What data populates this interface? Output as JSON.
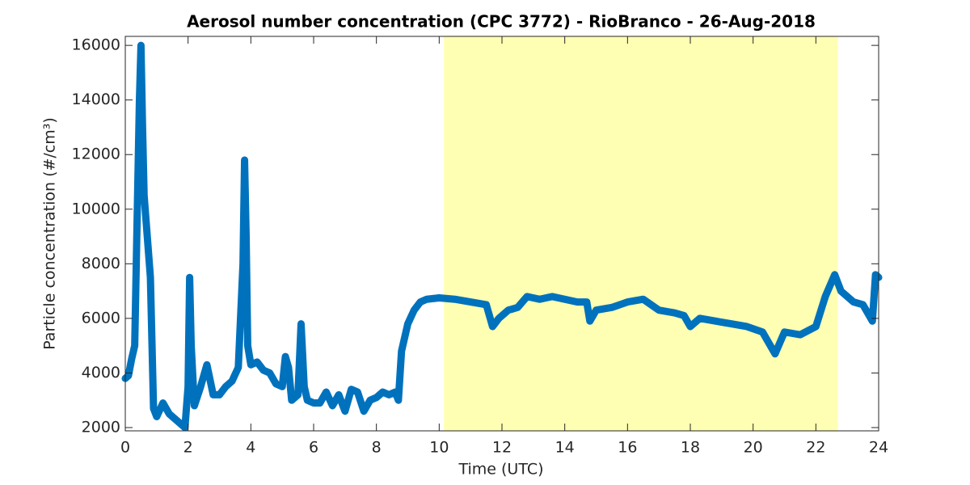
{
  "chart_data": {
    "type": "line",
    "title": "Aerosol number concentration (CPC 3772) - RioBranco - 26-Aug-2018",
    "x_label": "Time (UTC)",
    "y_label": "Particle concentration (#/cm³)",
    "xlim": [
      0,
      24
    ],
    "xticks": [
      0,
      2,
      4,
      6,
      8,
      10,
      12,
      14,
      16,
      18,
      20,
      22,
      24
    ],
    "ylim": [
      1880,
      16330
    ],
    "yticks": [
      2000,
      4000,
      6000,
      8000,
      10000,
      12000,
      14000,
      16000
    ],
    "shade": {
      "x": [
        10.15,
        22.7
      ],
      "color": "#ffffb3"
    },
    "series": [
      {
        "name": "CPC 3772",
        "color": "#0072bd",
        "x": [
          0,
          0.1,
          0.2,
          0.3,
          0.35,
          0.45,
          0.5,
          0.55,
          0.6,
          0.7,
          0.8,
          0.9,
          1.0,
          1.2,
          1.4,
          1.6,
          1.8,
          1.9,
          2.0,
          2.05,
          2.1,
          2.2,
          2.4,
          2.6,
          2.8,
          3.0,
          3.2,
          3.4,
          3.6,
          3.75,
          3.8,
          3.85,
          3.9,
          4.0,
          4.2,
          4.4,
          4.6,
          4.8,
          5.0,
          5.1,
          5.2,
          5.3,
          5.5,
          5.6,
          5.7,
          5.8,
          6.0,
          6.2,
          6.4,
          6.6,
          6.8,
          7.0,
          7.2,
          7.4,
          7.6,
          7.8,
          8.0,
          8.2,
          8.4,
          8.6,
          8.7,
          8.8,
          9.0,
          9.2,
          9.4,
          9.6,
          10,
          10.5,
          11,
          11.5,
          11.7,
          11.9,
          12.2,
          12.5,
          12.8,
          13.2,
          13.6,
          14,
          14.4,
          14.7,
          14.8,
          15,
          15.5,
          16,
          16.5,
          17,
          17.5,
          17.8,
          18,
          18.3,
          18.8,
          19.3,
          19.8,
          20.3,
          20.7,
          21,
          21.5,
          22,
          22.3,
          22.6,
          22.8,
          23.2,
          23.5,
          23.8,
          23.9,
          24
        ],
        "values": [
          3800,
          3900,
          4500,
          5000,
          8000,
          14000,
          16000,
          13000,
          10500,
          9000,
          7500,
          2700,
          2400,
          2900,
          2500,
          2300,
          2100,
          2000,
          3500,
          7500,
          5000,
          2800,
          3500,
          4300,
          3200,
          3200,
          3500,
          3700,
          4200,
          8000,
          11800,
          9000,
          5000,
          4300,
          4400,
          4100,
          4000,
          3600,
          3500,
          4600,
          4200,
          3000,
          3200,
          5800,
          3500,
          3000,
          2900,
          2900,
          3300,
          2800,
          3200,
          2600,
          3400,
          3300,
          2600,
          3000,
          3100,
          3300,
          3200,
          3300,
          3000,
          4800,
          5800,
          6300,
          6600,
          6700,
          6750,
          6700,
          6600,
          6500,
          5700,
          6000,
          6300,
          6400,
          6800,
          6700,
          6800,
          6700,
          6600,
          6600,
          5900,
          6300,
          6400,
          6600,
          6700,
          6300,
          6200,
          6100,
          5700,
          6000,
          5900,
          5800,
          5700,
          5500,
          4700,
          5500,
          5400,
          5700,
          6800,
          7600,
          7000,
          6600,
          6500,
          5900,
          7600,
          7500
        ]
      }
    ]
  }
}
